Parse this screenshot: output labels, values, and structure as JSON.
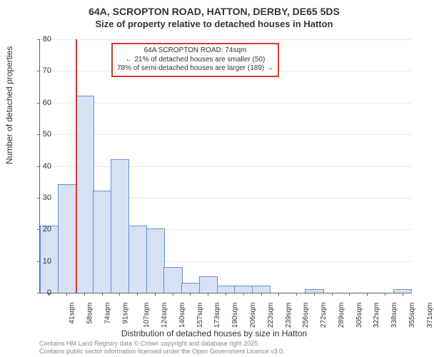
{
  "title": {
    "line1": "64A, SCROPTON ROAD, HATTON, DERBY, DE65 5DS",
    "line2": "Size of property relative to detached houses in Hatton"
  },
  "chart": {
    "type": "histogram",
    "ylabel": "Number of detached properties",
    "xlabel": "Distribution of detached houses by size in Hatton",
    "ylim": [
      0,
      80
    ],
    "ytick_step": 10,
    "background_color": "#ffffff",
    "grid_color": "#e8e8e8",
    "axis_color": "#666666",
    "bar_fill": "#d6e2f3",
    "bar_stroke": "#6a8fd0",
    "marker_color": "#d9372c",
    "annotation_border": "#d9372c",
    "label_fontsize": 12,
    "tick_fontsize": 11,
    "xtick_fontsize": 10,
    "title_fontsize": 14,
    "bins": [
      {
        "label": "41sqm",
        "value": 21
      },
      {
        "label": "58sqm",
        "value": 34
      },
      {
        "label": "74sqm",
        "value": 62
      },
      {
        "label": "91sqm",
        "value": 32
      },
      {
        "label": "107sqm",
        "value": 42
      },
      {
        "label": "124sqm",
        "value": 21
      },
      {
        "label": "140sqm",
        "value": 20
      },
      {
        "label": "157sqm",
        "value": 8
      },
      {
        "label": "173sqm",
        "value": 3
      },
      {
        "label": "190sqm",
        "value": 5
      },
      {
        "label": "206sqm",
        "value": 2
      },
      {
        "label": "223sqm",
        "value": 2
      },
      {
        "label": "239sqm",
        "value": 2
      },
      {
        "label": "256sqm",
        "value": 0
      },
      {
        "label": "272sqm",
        "value": 0
      },
      {
        "label": "289sqm",
        "value": 1
      },
      {
        "label": "305sqm",
        "value": 0
      },
      {
        "label": "322sqm",
        "value": 0
      },
      {
        "label": "338sqm",
        "value": 0
      },
      {
        "label": "355sqm",
        "value": 0
      },
      {
        "label": "371sqm",
        "value": 1
      }
    ],
    "marker_bin_index": 2,
    "annotation": {
      "line1": "64A SCROPTON ROAD: 74sqm",
      "line2": "← 21% of detached houses are smaller (50)",
      "line3": "78% of semi-detached houses are larger (189) →"
    }
  },
  "attribution": {
    "line1": "Contains HM Land Registry data © Crown copyright and database right 2025.",
    "line2": "Contains public sector information licensed under the Open Government Licence v3.0."
  }
}
